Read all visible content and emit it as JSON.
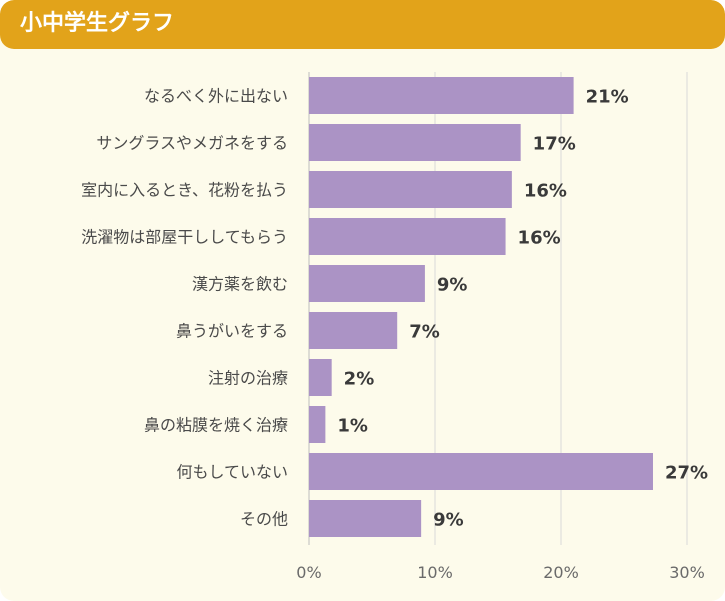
{
  "header": {
    "title": "小中学生グラフ"
  },
  "colors": {
    "header": "#e2a31a",
    "background": "#fdfbeb",
    "bar": "#ab93c5",
    "grid": "#d9d9d9"
  },
  "chart_data": {
    "type": "bar",
    "orientation": "horizontal",
    "title": "小中学生グラフ",
    "xlabel": "",
    "ylabel": "",
    "xlim": [
      0,
      30
    ],
    "ticks": [
      0,
      10,
      20,
      30
    ],
    "tick_labels": [
      "0%",
      "10%",
      "20%",
      "30%"
    ],
    "grid": true,
    "categories": [
      "なるべく外に出ない",
      "サングラスやメガネをする",
      "室内に入るとき、花粉を払う",
      "洗濯物は部屋干ししてもらう",
      "漢方薬を飲む",
      "鼻うがいをする",
      "注射の治療",
      "鼻の粘膜を焼く治療",
      "何もしていない",
      "その他"
    ],
    "values": [
      21,
      17,
      16,
      16,
      9,
      7,
      2,
      1,
      27,
      9
    ],
    "value_labels": [
      "21%",
      "17%",
      "16%",
      "16%",
      "9%",
      "7%",
      "2%",
      "1%",
      "27%",
      "9%"
    ],
    "drawn_values": [
      21,
      16.8,
      16.1,
      15.6,
      9.2,
      7.0,
      1.8,
      1.3,
      27.3,
      8.9
    ]
  }
}
